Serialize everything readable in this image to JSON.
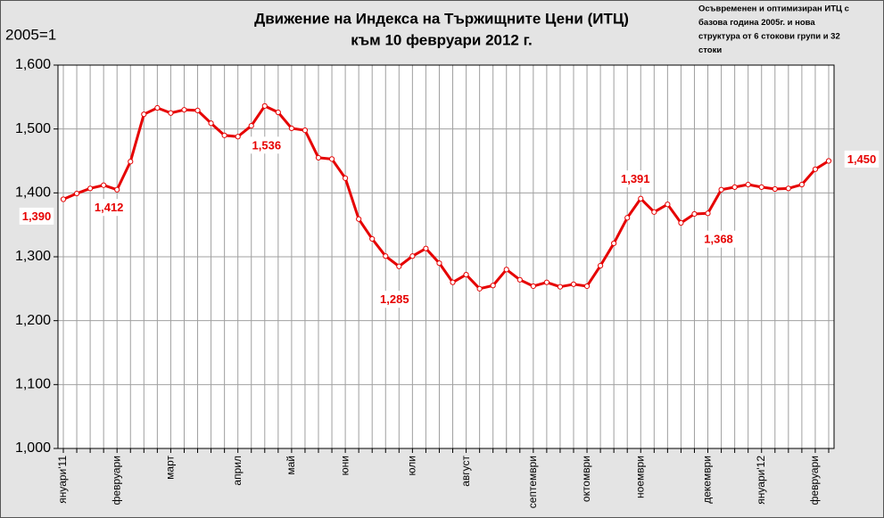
{
  "chart_data": {
    "type": "line",
    "title": "Движение на Индекса на Тържищните Цени (ИТЦ)",
    "subtitle": "към 10 февруари 2012 г.",
    "y_label": "2005=1",
    "note": [
      "Осъвременен и оптимизиран ИТЦ с",
      "базова година 2005г. и нова",
      "структура от 6 стокови групи и 32",
      "стоки"
    ],
    "categories": [
      "януари'11",
      null,
      null,
      null,
      "февруари",
      null,
      null,
      null,
      "март",
      null,
      null,
      null,
      null,
      "април",
      null,
      null,
      null,
      "май",
      null,
      null,
      null,
      "юни",
      null,
      null,
      null,
      null,
      "юли",
      null,
      null,
      null,
      "август",
      null,
      null,
      null,
      null,
      "септември",
      null,
      null,
      null,
      "октомври",
      null,
      null,
      null,
      "ноември",
      null,
      null,
      null,
      null,
      "декември",
      null,
      null,
      null,
      "януари'12",
      null,
      null,
      null,
      "февруари",
      null
    ],
    "series": [
      {
        "color": "#e60000",
        "values": [
          1.39,
          1.399,
          1.407,
          1.412,
          1.405,
          1.449,
          1.523,
          1.533,
          1.525,
          1.53,
          1.529,
          1.509,
          1.49,
          1.488,
          1.505,
          1.536,
          1.526,
          1.501,
          1.498,
          1.455,
          1.453,
          1.423,
          1.359,
          1.328,
          1.301,
          1.285,
          1.301,
          1.313,
          1.29,
          1.26,
          1.272,
          1.25,
          1.255,
          1.28,
          1.264,
          1.254,
          1.26,
          1.253,
          1.257,
          1.254,
          1.286,
          1.321,
          1.361,
          1.391,
          1.37,
          1.382,
          1.353,
          1.367,
          1.368,
          1.405,
          1.409,
          1.413,
          1.409,
          1.406,
          1.407,
          1.413,
          1.437,
          1.45
        ],
        "value_labels": [
          "1,390",
          null,
          null,
          "1,412",
          null,
          null,
          null,
          null,
          null,
          null,
          null,
          null,
          null,
          null,
          null,
          "1,536",
          null,
          null,
          null,
          null,
          null,
          null,
          null,
          null,
          null,
          "1,285",
          null,
          null,
          null,
          null,
          null,
          null,
          null,
          null,
          null,
          null,
          null,
          null,
          null,
          null,
          null,
          null,
          null,
          "1,391",
          null,
          null,
          null,
          null,
          "1,368",
          null,
          null,
          null,
          null,
          null,
          null,
          null,
          null,
          "1,450"
        ]
      }
    ],
    "ylim": [
      1.0,
      1.6
    ],
    "yticks": [
      {
        "value": 1.0,
        "label": "1,000"
      },
      {
        "value": 1.1,
        "label": "1,100"
      },
      {
        "value": 1.2,
        "label": "1,200"
      },
      {
        "value": 1.3,
        "label": "1,300"
      },
      {
        "value": 1.4,
        "label": "1,400"
      },
      {
        "value": 1.5,
        "label": "1,500"
      },
      {
        "value": 1.6,
        "label": "1,600"
      }
    ],
    "grid": true
  }
}
